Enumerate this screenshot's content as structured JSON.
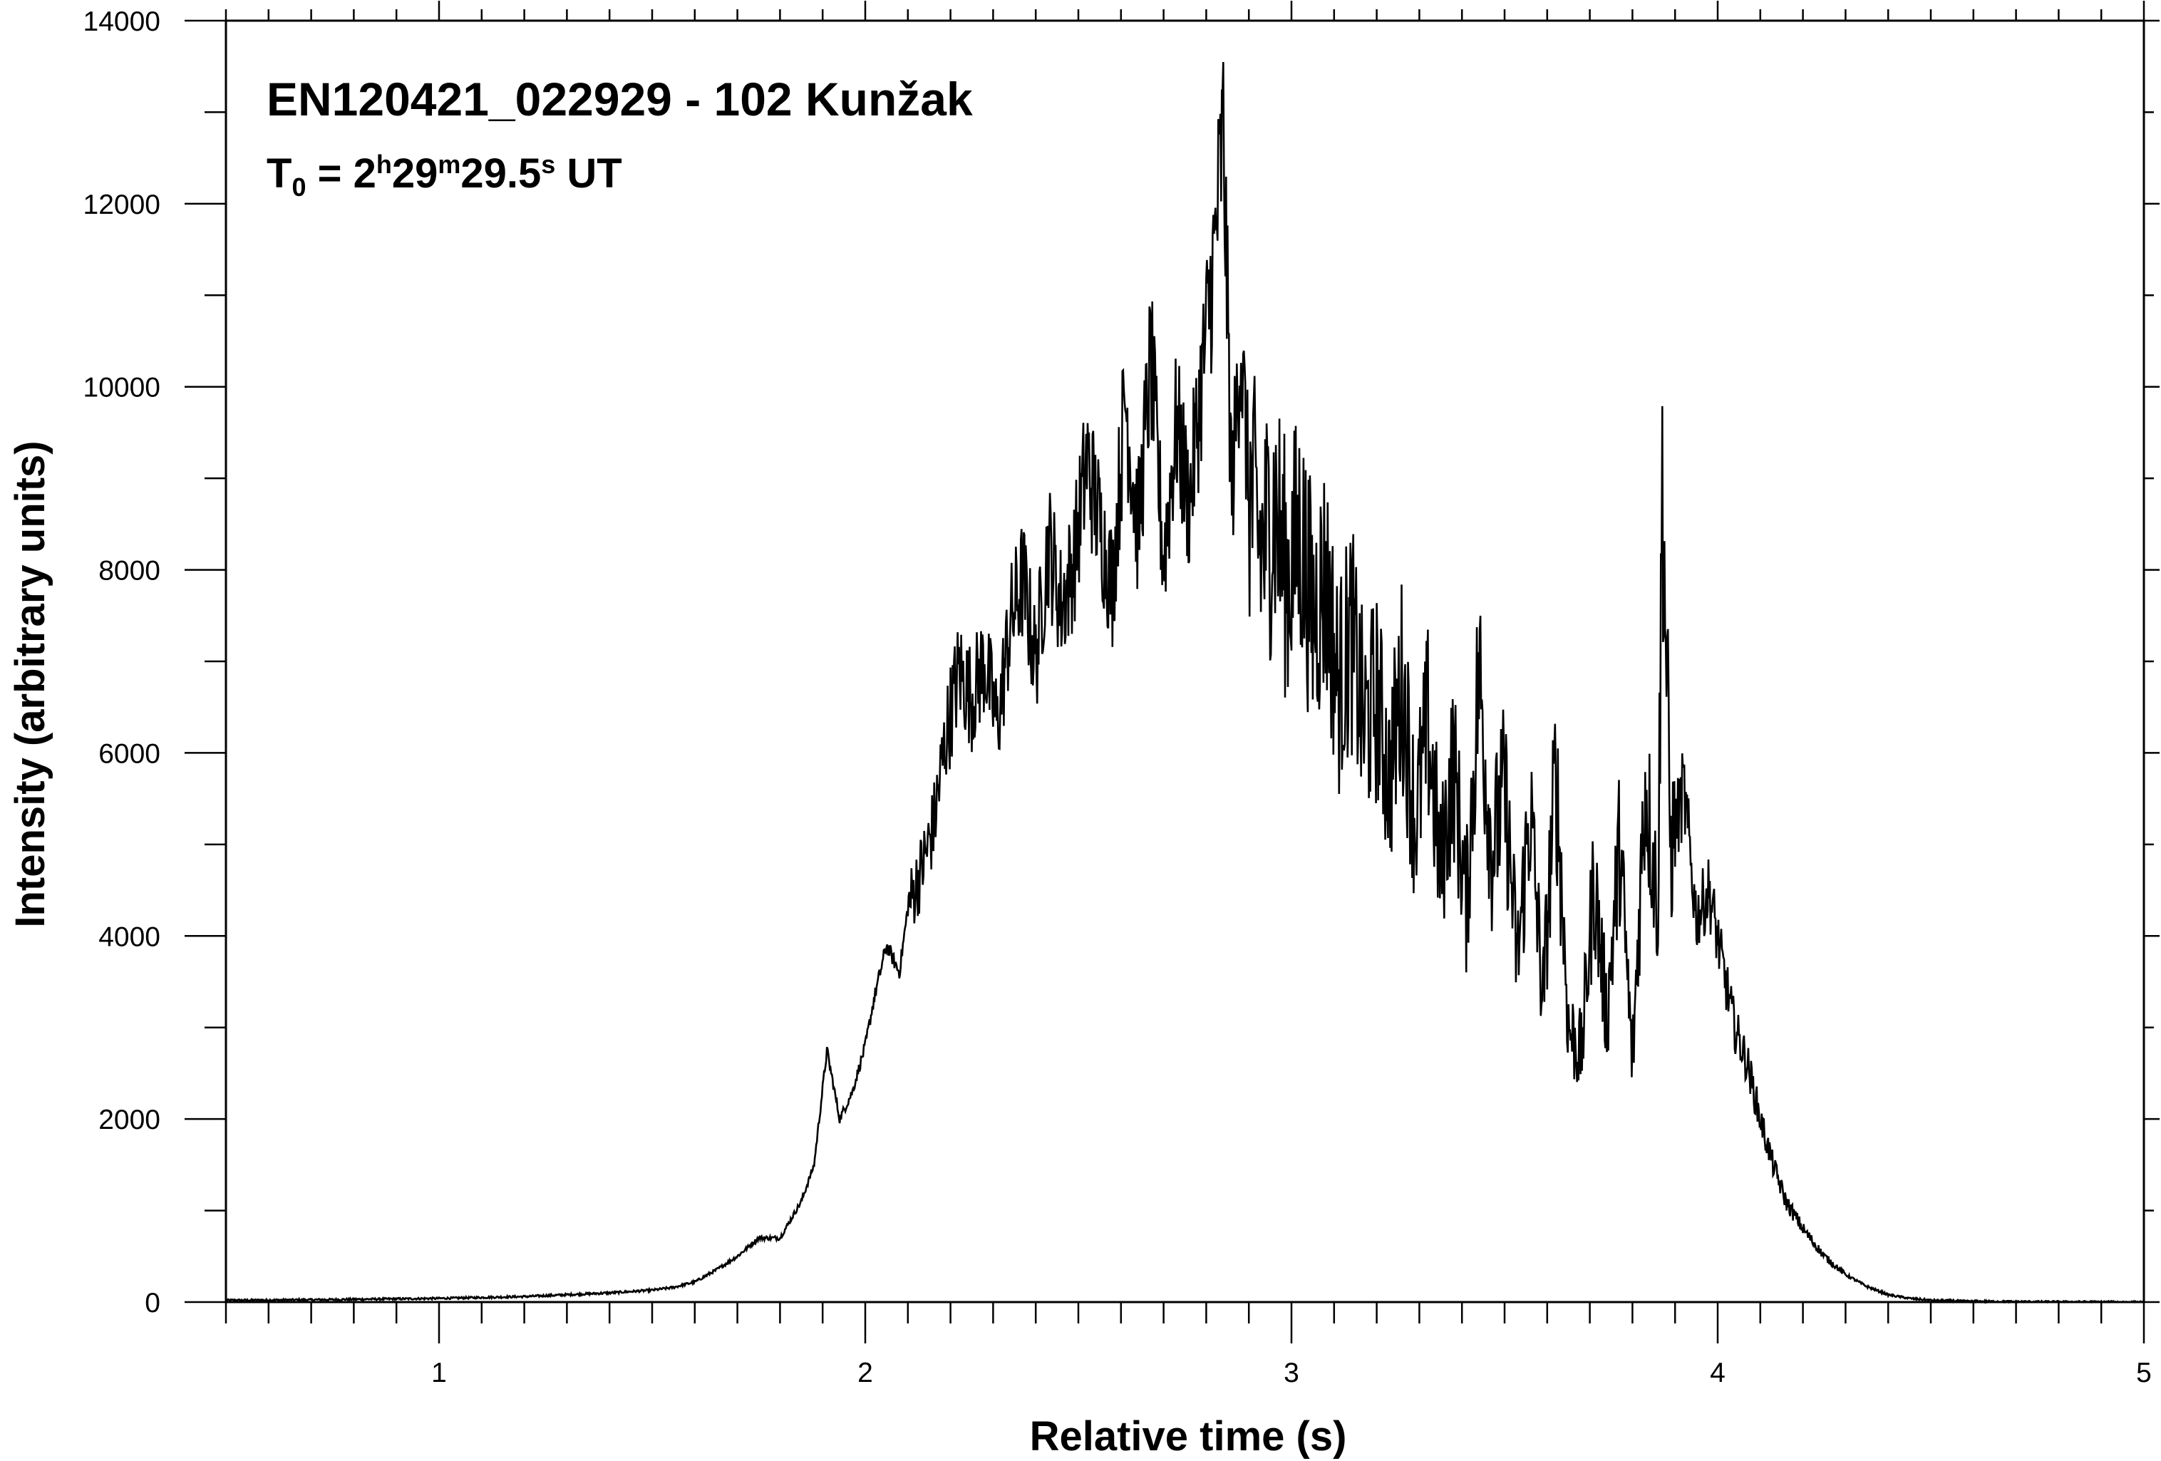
{
  "chart_data": {
    "type": "line",
    "title": "EN120421_022929 - 102 Kunžak",
    "subtitle": {
      "prefix": "T",
      "prefix_sub": "0",
      "equals": " = 2",
      "h": "h",
      "min_value": "29",
      "m": "m",
      "sec_value": "29.5",
      "s": "s",
      "suffix": " UT"
    },
    "xlabel": "Relative time (s)",
    "ylabel": "Intensity (arbitrary units)",
    "xlim": [
      0.5,
      5
    ],
    "ylim": [
      0,
      14000
    ],
    "x_ticks": [
      {
        "value": 1,
        "label": "1"
      },
      {
        "value": 2,
        "label": "2"
      },
      {
        "value": 3,
        "label": "3"
      },
      {
        "value": 4,
        "label": "4"
      },
      {
        "value": 5,
        "label": "5"
      }
    ],
    "y_ticks": [
      {
        "value": 0,
        "label": "0"
      },
      {
        "value": 2000,
        "label": "2000"
      },
      {
        "value": 4000,
        "label": "4000"
      },
      {
        "value": 6000,
        "label": "6000"
      },
      {
        "value": 8000,
        "label": "8000"
      },
      {
        "value": 10000,
        "label": "10000"
      },
      {
        "value": 12000,
        "label": "12000"
      },
      {
        "value": 14000,
        "label": "14000"
      }
    ],
    "grid": false,
    "line_color": "#000000",
    "series": [
      {
        "x": [
          0.5,
          0.6,
          0.7,
          0.8,
          0.9,
          1.0,
          1.1,
          1.2,
          1.3,
          1.4,
          1.5,
          1.55,
          1.6,
          1.65,
          1.7,
          1.75,
          1.8,
          1.85,
          1.88,
          1.91,
          1.94,
          1.97,
          2.0,
          2.02,
          2.05,
          2.08,
          2.1,
          2.13,
          2.16,
          2.19,
          2.22,
          2.25,
          2.28,
          2.31,
          2.34,
          2.37,
          2.4,
          2.43,
          2.46,
          2.49,
          2.52,
          2.55,
          2.58,
          2.61,
          2.64,
          2.67,
          2.7,
          2.73,
          2.76,
          2.79,
          2.82,
          2.84,
          2.86,
          2.88,
          2.9,
          2.93,
          2.96,
          2.99,
          3.02,
          3.05,
          3.08,
          3.11,
          3.14,
          3.17,
          3.2,
          3.23,
          3.26,
          3.29,
          3.32,
          3.35,
          3.38,
          3.41,
          3.44,
          3.47,
          3.5,
          3.53,
          3.56,
          3.59,
          3.62,
          3.65,
          3.68,
          3.71,
          3.74,
          3.77,
          3.8,
          3.83,
          3.86,
          3.87,
          3.89,
          3.92,
          3.95,
          3.98,
          4.01,
          4.04,
          4.07,
          4.1,
          4.13,
          4.16,
          4.2,
          4.25,
          4.3,
          4.35,
          4.4,
          4.45,
          4.5,
          4.6,
          4.7,
          4.8,
          4.9,
          5.0
        ],
        "y": [
          20,
          22,
          25,
          30,
          35,
          40,
          50,
          60,
          80,
          100,
          130,
          160,
          220,
          350,
          500,
          700,
          700,
          1100,
          1500,
          2750,
          2000,
          2300,
          2800,
          3300,
          3900,
          3600,
          4300,
          4700,
          5200,
          6200,
          6900,
          6600,
          7000,
          6300,
          7400,
          7900,
          7000,
          8300,
          7600,
          8100,
          9200,
          8500,
          7800,
          9900,
          8400,
          10300,
          8100,
          9600,
          8700,
          10100,
          11500,
          12800,
          8800,
          10500,
          8900,
          8200,
          8700,
          7900,
          8400,
          7500,
          7900,
          6700,
          7300,
          6300,
          6600,
          5700,
          6800,
          5200,
          6300,
          4700,
          5900,
          4300,
          6900,
          4900,
          5600,
          3700,
          5400,
          3300,
          5800,
          3000,
          2700,
          4600,
          3100,
          5000,
          2600,
          5700,
          4300,
          9000,
          4900,
          5600,
          4200,
          4500,
          3700,
          3000,
          2600,
          2000,
          1500,
          1100,
          800,
          500,
          300,
          170,
          80,
          40,
          20,
          8,
          5,
          3,
          2,
          0
        ]
      }
    ]
  }
}
